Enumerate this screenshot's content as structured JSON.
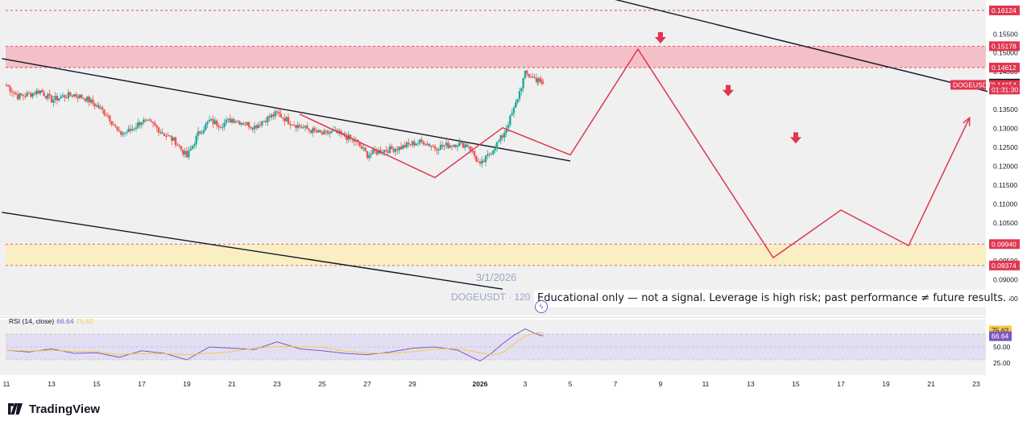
{
  "chart_data": {
    "type": "candlestick",
    "symbol": "DOGEUSDT",
    "watermark_date": "3/1/2026",
    "watermark_symbol": "DOGEUSDT · 120",
    "disclaimer": "Educational only — not a signal. Leverage is high risk; past performance ≠ future results.",
    "ylim": [
      0.0805,
      0.164
    ],
    "price_ticks": [
      "0.15500",
      "0.15000",
      "0.14500",
      "0.14000",
      "0.13500",
      "0.13000",
      "0.12500",
      "0.12000",
      "0.11500",
      "0.11000",
      "0.10500",
      "0.10000",
      "0.09500",
      "0.09000",
      "0.08500"
    ],
    "price_tick_values": [
      0.155,
      0.15,
      0.145,
      0.14,
      0.135,
      0.13,
      0.125,
      0.12,
      0.115,
      0.11,
      0.105,
      0.1,
      0.095,
      0.09,
      0.085
    ],
    "x_ticks": [
      "11",
      "13",
      "15",
      "17",
      "19",
      "21",
      "23",
      "25",
      "27",
      "29",
      "2026",
      "3",
      "5",
      "7",
      "9",
      "11",
      "13",
      "15",
      "17",
      "19",
      "21",
      "23"
    ],
    "x_tick_days": [
      0,
      2,
      4,
      6,
      8,
      10,
      12,
      14,
      16,
      18,
      21,
      23,
      25,
      27,
      29,
      31,
      33,
      35,
      37,
      39,
      41,
      43
    ],
    "levels": [
      {
        "label": "0.16124",
        "value": 0.16124,
        "style": "dashed-red"
      },
      {
        "label": "0.15178",
        "value": 0.15178,
        "style": "dashed-red"
      },
      {
        "label": "0.14612",
        "value": 0.14612,
        "style": "dashed-red"
      },
      {
        "label": "0.09940",
        "value": 0.0994,
        "style": "dashed-red"
      },
      {
        "label": "0.09374",
        "value": 0.09374,
        "style": "dashed-red"
      }
    ],
    "zones": [
      {
        "from": 0.14612,
        "to": 0.15178,
        "color": "#f4b7bf"
      },
      {
        "from": 0.09374,
        "to": 0.0994,
        "color": "#fbeebb"
      }
    ],
    "price_tags": [
      {
        "label": "0.14188",
        "value": 0.14188,
        "bg": "#131722"
      },
      {
        "label": "0.14154",
        "value": 0.14154,
        "bg": "#e0364f"
      },
      {
        "label": "01:31:30",
        "value": 0.1403,
        "bg": "#e0364f"
      }
    ],
    "symbol_tag": {
      "label": "DOGEUSDT",
      "value": 0.14154,
      "bg": "#e0364f"
    },
    "close_series": [
      [
        0,
        0.1415
      ],
      [
        0.5,
        0.1385
      ],
      [
        1,
        0.139
      ],
      [
        1.5,
        0.14
      ],
      [
        2,
        0.1375
      ],
      [
        2.5,
        0.1385
      ],
      [
        3,
        0.139
      ],
      [
        3.5,
        0.138
      ],
      [
        4,
        0.136
      ],
      [
        4.5,
        0.1335
      ],
      [
        5,
        0.1285
      ],
      [
        5.5,
        0.1295
      ],
      [
        6,
        0.132
      ],
      [
        6.5,
        0.131
      ],
      [
        7,
        0.1285
      ],
      [
        7.5,
        0.1265
      ],
      [
        8,
        0.1225
      ],
      [
        8.5,
        0.1285
      ],
      [
        9,
        0.132
      ],
      [
        9.5,
        0.131
      ],
      [
        10,
        0.1325
      ],
      [
        10.5,
        0.1315
      ],
      [
        11,
        0.1305
      ],
      [
        11.5,
        0.1325
      ],
      [
        12,
        0.134
      ],
      [
        12.5,
        0.132
      ],
      [
        13,
        0.1305
      ],
      [
        13.5,
        0.1295
      ],
      [
        14,
        0.1285
      ],
      [
        14.5,
        0.129
      ],
      [
        15,
        0.128
      ],
      [
        15.5,
        0.1265
      ],
      [
        16,
        0.123
      ],
      [
        16.5,
        0.124
      ],
      [
        17,
        0.1245
      ],
      [
        17.5,
        0.125
      ],
      [
        18,
        0.126
      ],
      [
        18.5,
        0.1265
      ],
      [
        19,
        0.125
      ],
      [
        19.5,
        0.1255
      ],
      [
        20,
        0.126
      ],
      [
        20.5,
        0.1255
      ],
      [
        21,
        0.12
      ],
      [
        21.5,
        0.124
      ],
      [
        22,
        0.128
      ],
      [
        22.5,
        0.135
      ],
      [
        23,
        0.1445
      ],
      [
        23.5,
        0.143
      ],
      [
        23.8,
        0.1418
      ]
    ],
    "rsi": {
      "label": "RSI (14, close)",
      "value": "66.64",
      "ma_value": "75.62",
      "levels": [
        "50.00",
        "25.00"
      ],
      "tag1": "75.62",
      "tag2": "66.64"
    },
    "rsi_series": [
      [
        0,
        45
      ],
      [
        1,
        42
      ],
      [
        2,
        47
      ],
      [
        3,
        40
      ],
      [
        4,
        41
      ],
      [
        5,
        34
      ],
      [
        6,
        44
      ],
      [
        7,
        40
      ],
      [
        8,
        30
      ],
      [
        9,
        50
      ],
      [
        10,
        48
      ],
      [
        11,
        46
      ],
      [
        12,
        58
      ],
      [
        13,
        47
      ],
      [
        14,
        44
      ],
      [
        15,
        40
      ],
      [
        16,
        38
      ],
      [
        17,
        42
      ],
      [
        18,
        48
      ],
      [
        19,
        50
      ],
      [
        20,
        45
      ],
      [
        21,
        28
      ],
      [
        21.5,
        40
      ],
      [
        22,
        55
      ],
      [
        22.5,
        68
      ],
      [
        23,
        78
      ],
      [
        23.5,
        70
      ],
      [
        23.8,
        67
      ]
    ],
    "channel_lines": [
      {
        "from": [
          -0.2,
          0.1485
        ],
        "to": [
          25,
          0.1214
        ]
      },
      {
        "from": [
          -0.2,
          0.1078
        ],
        "to": [
          22,
          0.0875
        ]
      },
      {
        "from": [
          24.5,
          0.1678
        ],
        "to": [
          43.5,
          0.1398
        ]
      }
    ],
    "projection_path": [
      [
        13,
        0.1338
      ],
      [
        19,
        0.117
      ],
      [
        22,
        0.1302
      ],
      [
        25,
        0.123
      ],
      [
        28,
        0.151
      ],
      [
        34,
        0.0958
      ],
      [
        37,
        0.1084
      ],
      [
        40,
        0.099
      ],
      [
        42.7,
        0.1328
      ]
    ],
    "sell_arrows": [
      [
        29,
        0.154
      ],
      [
        32,
        0.14
      ],
      [
        35,
        0.1275
      ]
    ]
  },
  "branding": {
    "name": "TradingView"
  }
}
